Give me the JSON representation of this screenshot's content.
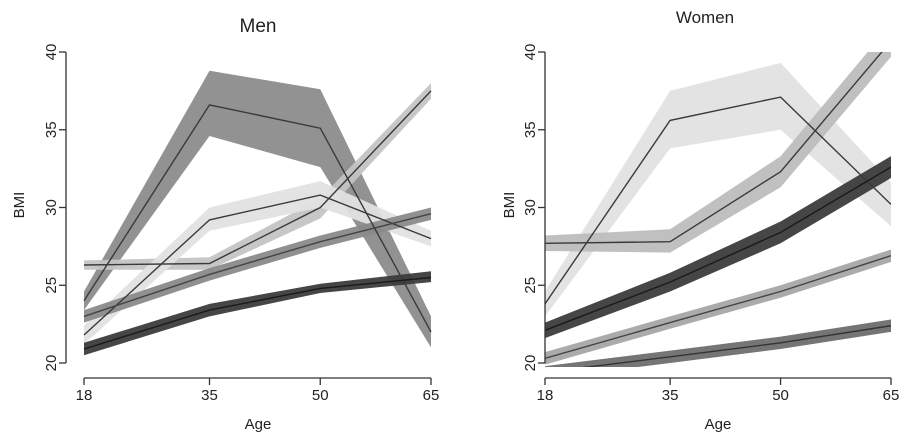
{
  "chart_data": [
    {
      "type": "line",
      "title": "Men",
      "xlabel": "Age",
      "ylabel": "BMI",
      "x": [
        18,
        35,
        50,
        65
      ],
      "xlim": [
        18,
        65
      ],
      "ylim": [
        20,
        40
      ],
      "xticks": [
        "18",
        "35",
        "50",
        "65"
      ],
      "yticks": [
        "20",
        "25",
        "30",
        "35",
        "40"
      ],
      "grid": false,
      "series": [
        {
          "values": [
            24.0,
            36.6,
            35.1,
            22.0
          ],
          "lower": [
            23.4,
            34.6,
            32.6,
            21.0
          ],
          "upper": [
            24.6,
            38.8,
            37.6,
            23.0
          ],
          "band_color": "#8c8c8c",
          "line_color": "#3a3a3a"
        },
        {
          "values": [
            26.3,
            26.4,
            30.0,
            37.5
          ],
          "lower": [
            26.0,
            26.0,
            29.3,
            37.0
          ],
          "upper": [
            26.6,
            26.8,
            30.6,
            38.0
          ],
          "band_color": "#c4c4c4",
          "line_color": "#3a3a3a"
        },
        {
          "values": [
            21.8,
            29.2,
            30.8,
            28.0
          ],
          "lower": [
            21.2,
            28.5,
            30.0,
            27.5
          ],
          "upper": [
            22.4,
            30.0,
            31.7,
            28.5
          ],
          "band_color": "#e2e2e2",
          "line_color": "#3a3a3a"
        },
        {
          "values": [
            23.0,
            25.7,
            27.8,
            29.6
          ],
          "lower": [
            22.6,
            25.3,
            27.4,
            29.2
          ],
          "upper": [
            23.4,
            26.1,
            28.2,
            30.0
          ],
          "band_color": "#8a8a8a",
          "line_color": "#444444"
        },
        {
          "values": [
            20.9,
            23.4,
            24.8,
            25.5
          ],
          "lower": [
            20.5,
            23.0,
            24.5,
            25.2
          ],
          "upper": [
            21.3,
            23.8,
            25.1,
            25.9
          ],
          "band_color": "#3c3c3c",
          "line_color": "#1a1a1a"
        }
      ]
    },
    {
      "type": "line",
      "title": "Women",
      "xlabel": "Age",
      "ylabel": "BMI",
      "x": [
        18,
        35,
        50,
        65
      ],
      "xlim": [
        18,
        65
      ],
      "ylim": [
        20,
        40
      ],
      "xticks": [
        "18",
        "35",
        "50",
        "65"
      ],
      "yticks": [
        "20",
        "25",
        "30",
        "35",
        "40"
      ],
      "grid": false,
      "series": [
        {
          "values": [
            23.8,
            35.6,
            37.1,
            30.2
          ],
          "lower": [
            23.0,
            33.8,
            35.0,
            28.8
          ],
          "upper": [
            24.6,
            37.5,
            39.3,
            31.6
          ],
          "band_color": "#e2e2e2",
          "line_color": "#3a3a3a"
        },
        {
          "values": [
            27.7,
            27.8,
            32.3,
            40.7
          ],
          "lower": [
            27.2,
            27.1,
            31.3,
            39.7
          ],
          "upper": [
            28.2,
            28.6,
            33.3,
            41.8
          ],
          "band_color": "#bdbdbd",
          "line_color": "#3a3a3a"
        },
        {
          "values": [
            22.1,
            25.2,
            28.4,
            32.6
          ],
          "lower": [
            21.6,
            24.6,
            27.7,
            31.9
          ],
          "upper": [
            22.6,
            25.8,
            29.1,
            33.3
          ],
          "band_color": "#3c3c3c",
          "line_color": "#1a1a1a"
        },
        {
          "values": [
            20.3,
            22.6,
            24.6,
            26.9
          ],
          "lower": [
            19.9,
            22.2,
            24.2,
            26.5
          ],
          "upper": [
            20.7,
            23.0,
            25.0,
            27.3
          ],
          "band_color": "#a6a6a6",
          "line_color": "#444444"
        },
        {
          "values": [
            19.4,
            20.4,
            21.3,
            22.4
          ],
          "lower": [
            19.0,
            20.0,
            20.9,
            22.0
          ],
          "upper": [
            19.8,
            20.8,
            21.7,
            22.8
          ],
          "band_color": "#6e6e6e",
          "line_color": "#333333"
        }
      ]
    }
  ]
}
